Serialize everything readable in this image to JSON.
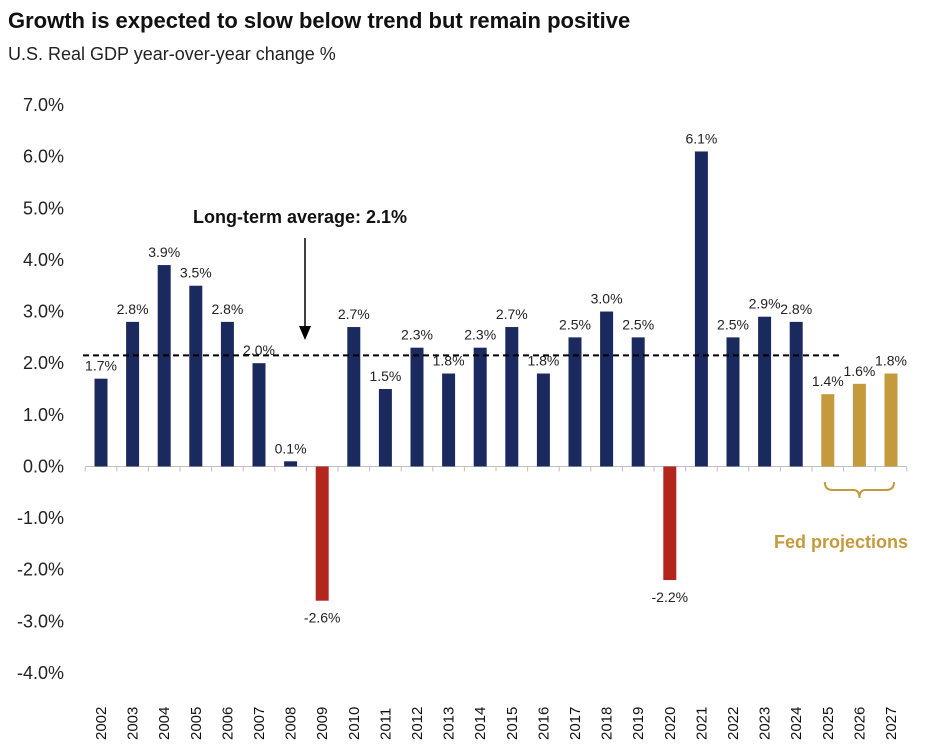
{
  "title": "Growth is expected to slow below trend but remain positive",
  "subtitle": "U.S. Real GDP year-over-year change %",
  "colors": {
    "actual": "#1b2a5e",
    "negative": "#b3261e",
    "projection": "#c49a3c",
    "average_line": "#000000"
  },
  "chart_data": {
    "type": "bar",
    "title": "Growth is expected to slow below trend but remain positive",
    "subtitle": "U.S. Real GDP year-over-year change %",
    "xlabel": "",
    "ylabel": "",
    "ylim": [
      -4.0,
      7.0
    ],
    "yticks": [
      "7.0%",
      "6.0%",
      "5.0%",
      "4.0%",
      "3.0%",
      "2.0%",
      "1.0%",
      "0.0%",
      "-1.0%",
      "-2.0%",
      "-3.0%",
      "-4.0%"
    ],
    "categories": [
      "2002",
      "2003",
      "2004",
      "2005",
      "2006",
      "2007",
      "2008",
      "2009",
      "2010",
      "2011",
      "2012",
      "2013",
      "2014",
      "2015",
      "2016",
      "2017",
      "2018",
      "2019",
      "2020",
      "2021",
      "2022",
      "2023",
      "2024",
      "2025",
      "2026",
      "2027"
    ],
    "values": [
      1.7,
      2.8,
      3.9,
      3.5,
      2.8,
      2.0,
      0.1,
      -2.6,
      2.7,
      1.5,
      2.3,
      1.8,
      2.3,
      2.7,
      1.8,
      2.5,
      3.0,
      2.5,
      -2.2,
      6.1,
      2.5,
      2.9,
      2.8,
      1.4,
      1.6,
      1.8
    ],
    "labels": [
      "1.7%",
      "2.8%",
      "3.9%",
      "3.5%",
      "2.8%",
      "2.0%",
      "0.1%",
      "-2.6%",
      "2.7%",
      "1.5%",
      "2.3%",
      "1.8%",
      "2.3%",
      "2.7%",
      "1.8%",
      "2.5%",
      "3.0%",
      "2.5%",
      "-2.2%",
      "6.1%",
      "2.5%",
      "2.9%",
      "2.8%",
      "1.4%",
      "1.6%",
      "1.8%"
    ],
    "projection_from_index": 23,
    "long_term_average": 2.15,
    "grid": false,
    "annotations": {
      "average_label": "Long-term average: 2.1%",
      "projection_label": "Fed projections"
    }
  }
}
